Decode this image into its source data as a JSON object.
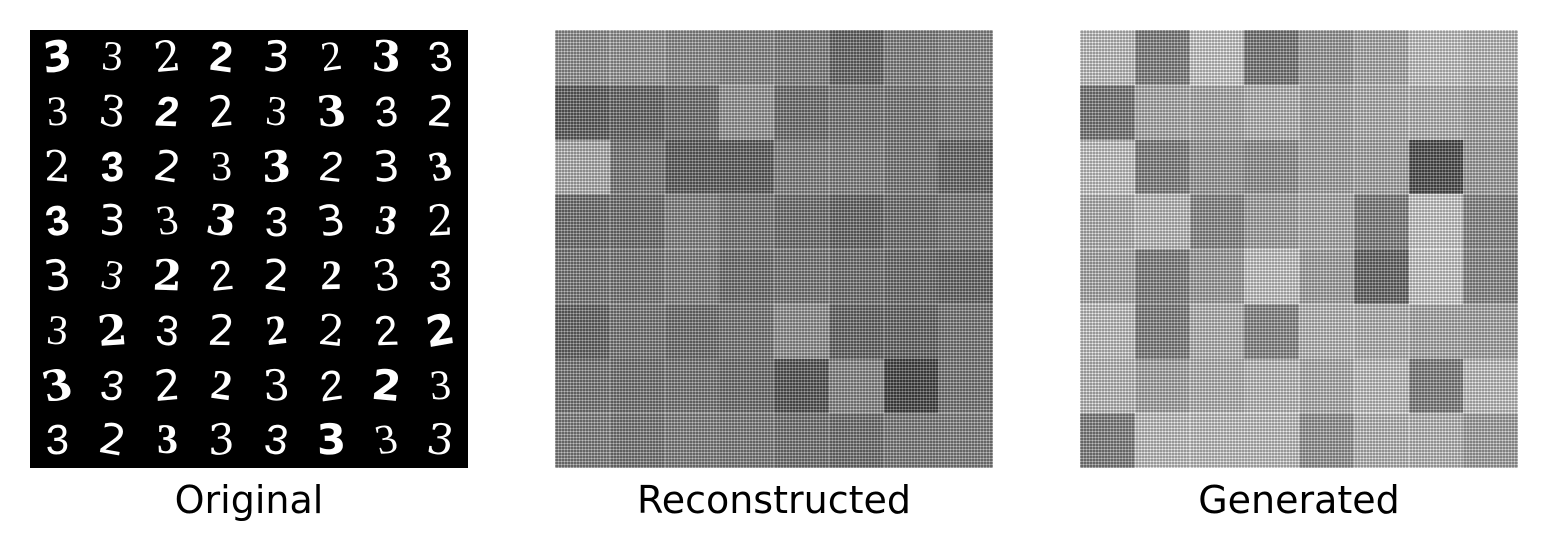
{
  "panels": [
    {
      "caption": "Original"
    },
    {
      "caption": "Reconstructed"
    },
    {
      "caption": "Generated"
    }
  ],
  "original_digits": [
    [
      "3",
      "3",
      "2",
      "2",
      "3",
      "2",
      "3",
      "3"
    ],
    [
      "3",
      "3",
      "2",
      "2",
      "3",
      "3",
      "3",
      "2"
    ],
    [
      "2",
      "3",
      "2",
      "3",
      "3",
      "2",
      "3",
      "3"
    ],
    [
      "3",
      "3",
      "3",
      "3",
      "3",
      "3",
      "3",
      "2"
    ],
    [
      "3",
      "3",
      "2",
      "2",
      "2",
      "2",
      "3",
      "3"
    ],
    [
      "3",
      "2",
      "3",
      "2",
      "2",
      "2",
      "2",
      "2"
    ],
    [
      "3",
      "3",
      "2",
      "2",
      "3",
      "2",
      "2",
      "3"
    ],
    [
      "3",
      "2",
      "3",
      "3",
      "3",
      "3",
      "3",
      "3"
    ]
  ],
  "reconstructed_gray": [
    [
      170,
      175,
      165,
      160,
      150,
      120,
      150,
      160
    ],
    [
      110,
      120,
      130,
      175,
      130,
      140,
      140,
      150
    ],
    [
      205,
      140,
      110,
      110,
      150,
      150,
      140,
      120
    ],
    [
      130,
      130,
      155,
      140,
      130,
      120,
      130,
      140
    ],
    [
      140,
      140,
      150,
      130,
      140,
      130,
      125,
      120
    ],
    [
      120,
      140,
      130,
      140,
      170,
      120,
      120,
      140
    ],
    [
      140,
      135,
      140,
      130,
      100,
      160,
      80,
      140
    ],
    [
      150,
      140,
      150,
      145,
      135,
      130,
      145,
      150
    ]
  ],
  "generated_gray": [
    [
      225,
      150,
      235,
      140,
      180,
      200,
      230,
      220
    ],
    [
      140,
      200,
      200,
      210,
      195,
      205,
      210,
      200
    ],
    [
      230,
      150,
      180,
      170,
      190,
      195,
      90,
      185
    ],
    [
      210,
      220,
      160,
      190,
      200,
      150,
      235,
      160
    ],
    [
      200,
      150,
      185,
      230,
      190,
      120,
      235,
      160
    ],
    [
      225,
      150,
      210,
      160,
      215,
      210,
      200,
      195
    ],
    [
      220,
      195,
      210,
      220,
      205,
      225,
      150,
      225
    ],
    [
      150,
      225,
      225,
      225,
      175,
      215,
      215,
      190
    ]
  ]
}
